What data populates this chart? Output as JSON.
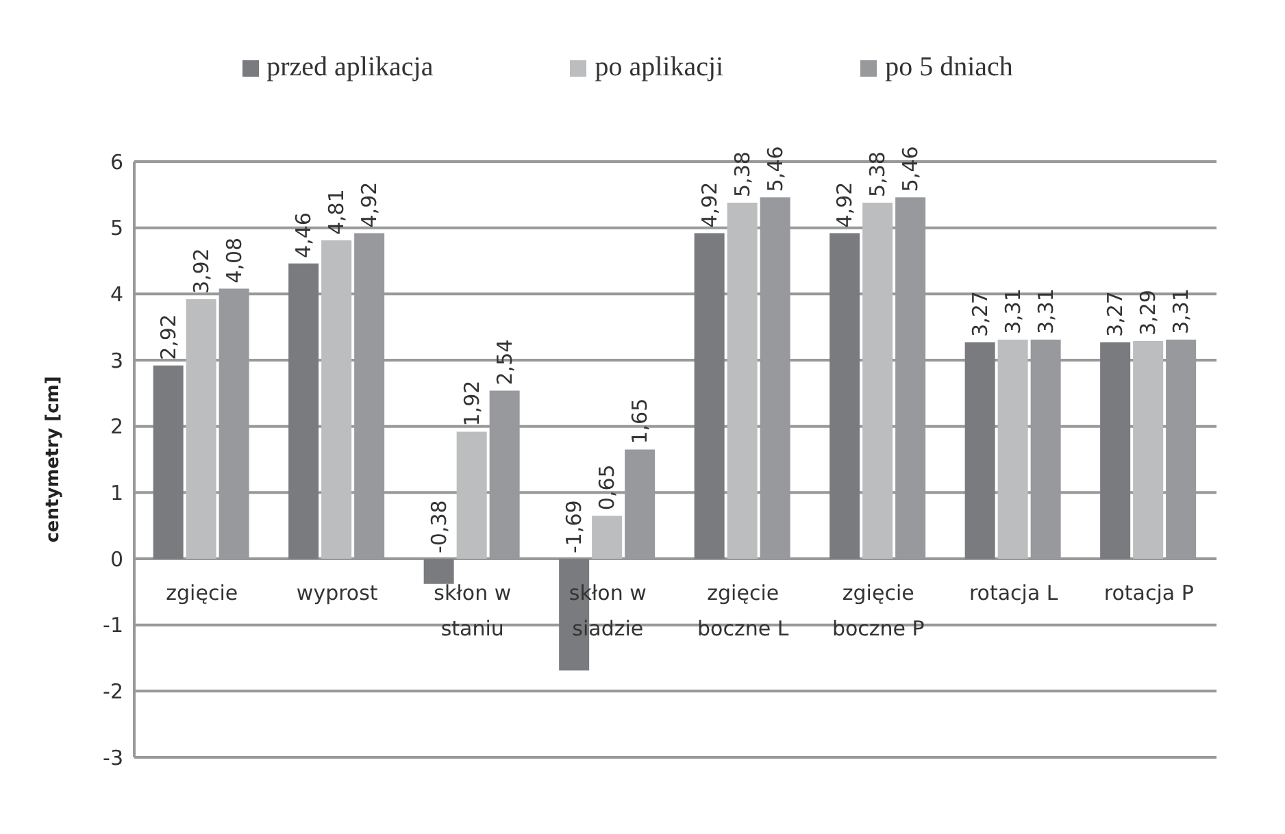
{
  "chart_data": {
    "type": "bar",
    "ylabel": "centymetry [cm]",
    "categories": [
      "zgięcie",
      "wyprost",
      "skłon w staniu",
      "skłon w siadzie",
      "zgięcie boczne L",
      "zgięcie boczne P",
      "rotacja L",
      "rotacja P"
    ],
    "series": [
      {
        "name": "przed aplikacja",
        "color": "#7a7b7f",
        "values": [
          2.92,
          4.46,
          -0.38,
          -1.69,
          4.92,
          4.92,
          3.27,
          3.27
        ],
        "value_labels": [
          "2,92",
          "4,46",
          "-0,38",
          "-1,69",
          "4,92",
          "4,92",
          "3,27",
          "3,27"
        ]
      },
      {
        "name": "po aplikacji",
        "color": "#bcbdbf",
        "values": [
          3.92,
          4.81,
          1.92,
          0.65,
          5.38,
          5.38,
          3.31,
          3.29
        ],
        "value_labels": [
          "3,92",
          "4,81",
          "1,92",
          "0,65",
          "5,38",
          "5,38",
          "3,31",
          "3,29"
        ]
      },
      {
        "name": "po 5 dniach",
        "color": "#98999c",
        "values": [
          4.08,
          4.92,
          2.54,
          1.65,
          5.46,
          5.46,
          3.31,
          3.31
        ],
        "value_labels": [
          "4,08",
          "4,92",
          "2,54",
          "1,65",
          "5,46",
          "5,46",
          "3,31",
          "3,31"
        ]
      }
    ],
    "ylim": [
      -3,
      6
    ],
    "yticks": [
      -3,
      -2,
      -1,
      0,
      1,
      2,
      3,
      4,
      5,
      6
    ],
    "grid": "y",
    "legend": "top"
  }
}
